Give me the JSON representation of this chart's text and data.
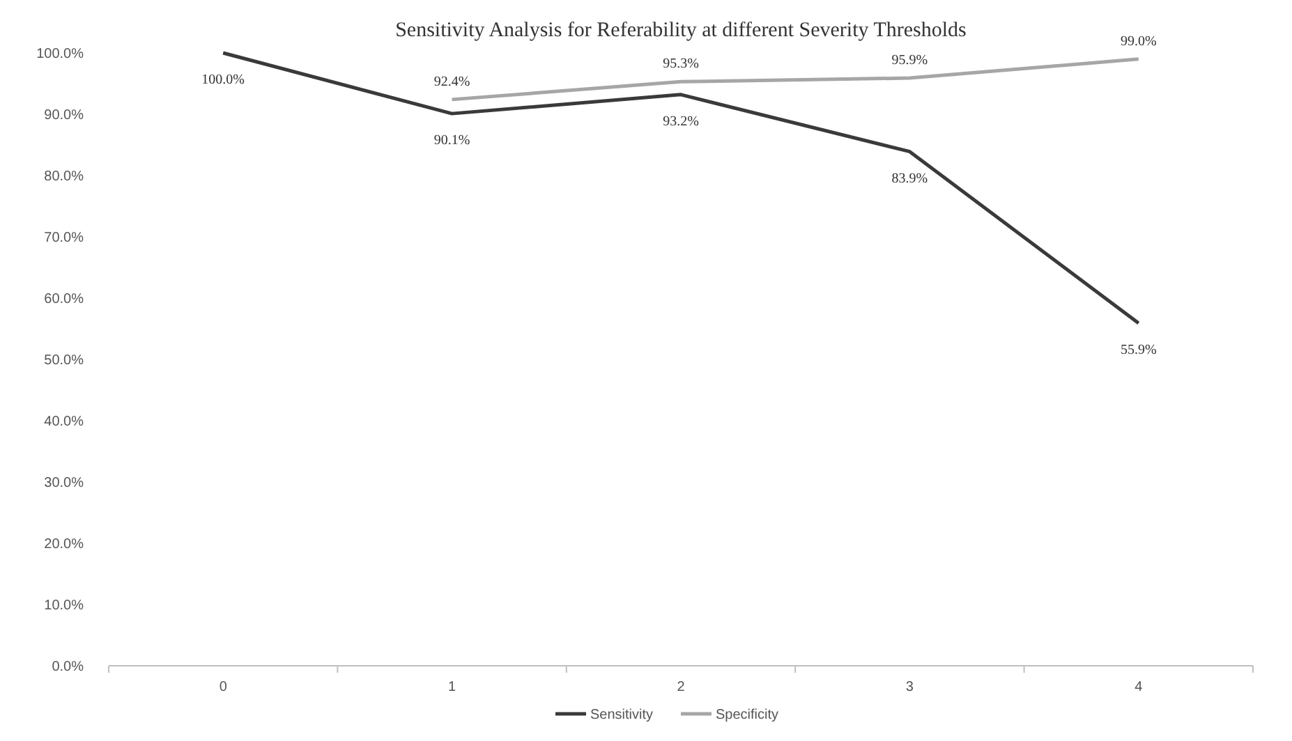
{
  "chart_data": {
    "type": "line",
    "title": "Sensitivity Analysis for Referability at different Severity Thresholds",
    "categories": [
      "0",
      "1",
      "2",
      "3",
      "4"
    ],
    "series": [
      {
        "name": "Sensitivity",
        "color": "#3a3a3a",
        "values": [
          100,
          90.1,
          93.2,
          83.9,
          55.9
        ],
        "value_labels": [
          "100.0%",
          "90.1%",
          "93.2%",
          "83.9%",
          "55.9%"
        ]
      },
      {
        "name": "Specificity",
        "color": "#a6a6a6",
        "values": [
          null,
          92.4,
          95.3,
          95.9,
          99.0
        ],
        "value_labels": [
          null,
          "92.4%",
          "95.3%",
          "95.9%",
          "99.0%"
        ]
      }
    ],
    "ylim": [
      0,
      100
    ],
    "yticks": [
      {
        "value": 0,
        "label": "0.0%"
      },
      {
        "value": 10,
        "label": "10.0%"
      },
      {
        "value": 20,
        "label": "20.0%"
      },
      {
        "value": 30,
        "label": "30.0%"
      },
      {
        "value": 40,
        "label": "40.0%"
      },
      {
        "value": 50,
        "label": "50.0%"
      },
      {
        "value": 60,
        "label": "60.0%"
      },
      {
        "value": 70,
        "label": "70.0%"
      },
      {
        "value": 80,
        "label": "80.0%"
      },
      {
        "value": 90,
        "label": "90.0%"
      },
      {
        "value": 100,
        "label": "100.0%"
      }
    ],
    "grid": false,
    "legend": "bottom",
    "marker": "none",
    "line_style": "solid"
  }
}
